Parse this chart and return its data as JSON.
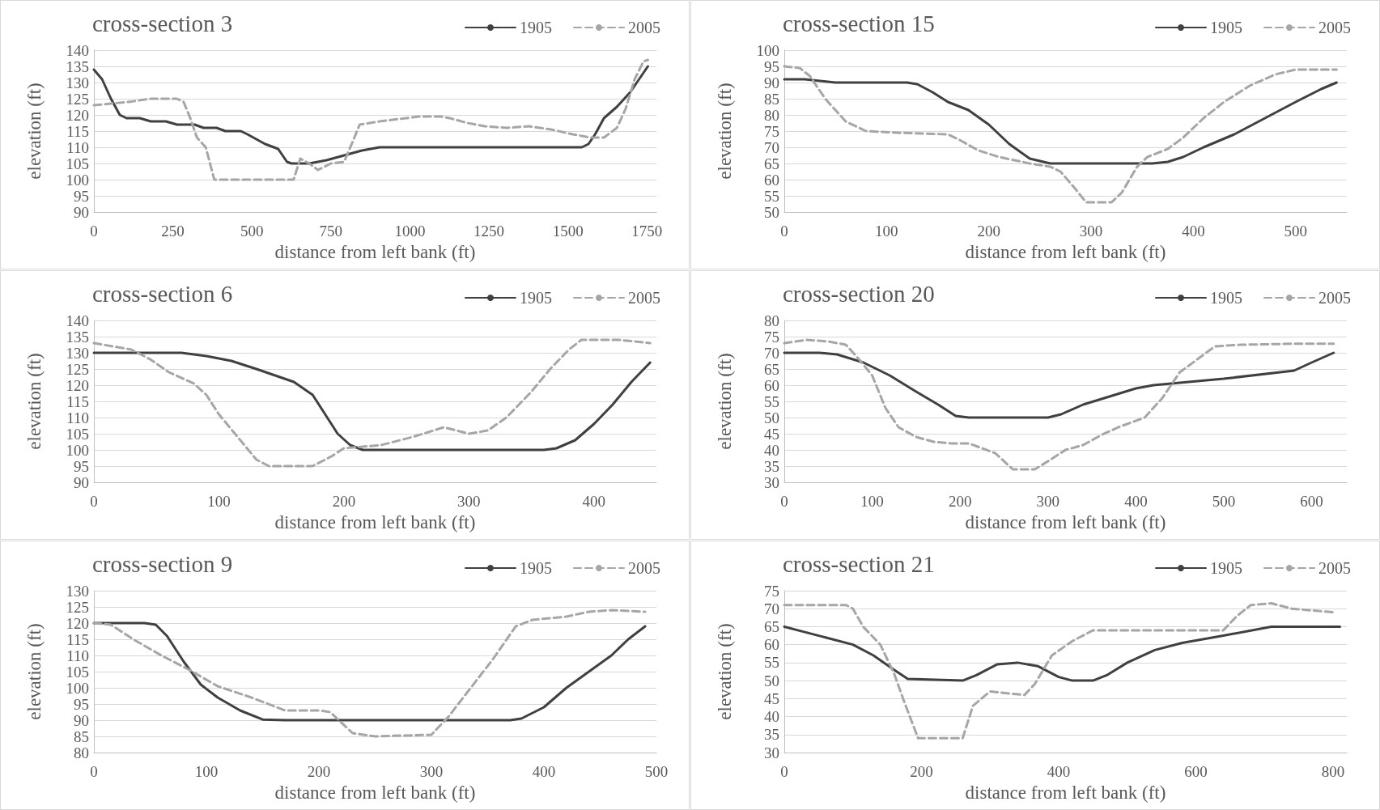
{
  "chart_data": [
    {
      "type": "line",
      "title": "cross-section 3",
      "xlabel": "distance from left bank (ft)",
      "ylabel": "elevation (ft)",
      "xlim": [
        0,
        1780
      ],
      "xticks": [
        0,
        250,
        500,
        750,
        1000,
        1250,
        1500,
        1750
      ],
      "ylim": [
        90,
        140
      ],
      "yticks": [
        90,
        95,
        100,
        105,
        110,
        115,
        120,
        125,
        130,
        135,
        140
      ],
      "grid": "y",
      "legend": "top right",
      "marker": "none",
      "series": [
        {
          "name": "1905",
          "color": "#404040",
          "line_style": "solid",
          "x": [
            0,
            26,
            54,
            82,
            103,
            145,
            180,
            228,
            263,
            319,
            347,
            388,
            416,
            465,
            486,
            542,
            583,
            611,
            625,
            681,
            736,
            792,
            848,
            904,
            1098,
            1544,
            1565,
            1586,
            1614,
            1655,
            1697,
            1725,
            1753
          ],
          "values": [
            134,
            131,
            125,
            120,
            119,
            119,
            118,
            118,
            117,
            117,
            116,
            116,
            115,
            115,
            114,
            111,
            109.5,
            105.5,
            105,
            105,
            106,
            107.5,
            109,
            110,
            110,
            110,
            111,
            114,
            119,
            122.5,
            127,
            131,
            135
          ]
        },
        {
          "name": "2005",
          "color": "#a6a6a6",
          "line_style": "dashed",
          "x": [
            0,
            54,
            110,
            180,
            263,
            284,
            305,
            326,
            354,
            381,
            402,
            632,
            653,
            681,
            709,
            750,
            792,
            820,
            841,
            904,
            1029,
            1098,
            1126,
            1182,
            1237,
            1307,
            1376,
            1446,
            1516,
            1572,
            1614,
            1655,
            1683,
            1711,
            1739,
            1753
          ],
          "values": [
            123,
            123.5,
            124,
            125,
            125,
            124,
            119,
            113,
            110,
            100,
            100,
            100,
            106.5,
            105,
            103,
            105,
            105.5,
            112,
            117,
            118,
            119.5,
            119.5,
            119,
            117.5,
            116.5,
            116,
            116.5,
            115.5,
            114,
            113,
            113,
            116,
            122,
            131,
            136.5,
            137
          ]
        }
      ]
    },
    {
      "type": "line",
      "title": "cross-section 15",
      "xlabel": "distance from left bank (ft)",
      "ylabel": "elevation (ft)",
      "xlim": [
        0,
        550
      ],
      "xticks": [
        0,
        100,
        200,
        300,
        400,
        500
      ],
      "ylim": [
        50,
        100
      ],
      "yticks": [
        50,
        55,
        60,
        65,
        70,
        75,
        80,
        85,
        90,
        95,
        100
      ],
      "grid": "y",
      "legend": "top right",
      "marker": "none",
      "series": [
        {
          "name": "1905",
          "color": "#404040",
          "line_style": "solid",
          "x": [
            0,
            20,
            50,
            120,
            130,
            145,
            160,
            180,
            200,
            220,
            240,
            260,
            300,
            360,
            375,
            390,
            410,
            440,
            470,
            500,
            525,
            540
          ],
          "values": [
            91,
            91,
            90,
            90,
            89.5,
            87,
            84,
            81.5,
            77,
            71,
            66.5,
            65,
            65,
            65,
            65.5,
            67,
            70,
            74,
            79,
            84,
            88,
            90
          ]
        },
        {
          "name": "2005",
          "color": "#a6a6a6",
          "line_style": "dashed",
          "x": [
            0,
            15,
            25,
            40,
            60,
            80,
            110,
            160,
            170,
            190,
            210,
            240,
            260,
            270,
            285,
            295,
            320,
            330,
            345,
            355,
            375,
            390,
            410,
            430,
            455,
            480,
            500,
            540
          ],
          "values": [
            95,
            94.5,
            92,
            85,
            78,
            75,
            74.5,
            74,
            72.5,
            69,
            67,
            65,
            64,
            62.5,
            57,
            53,
            53,
            56,
            64,
            67,
            69.5,
            73,
            79,
            84,
            89,
            92.5,
            94,
            94
          ]
        }
      ]
    },
    {
      "type": "line",
      "title": "cross-section 6",
      "xlabel": "distance from left bank (ft)",
      "ylabel": "elevation (ft)",
      "xlim": [
        0,
        450
      ],
      "xticks": [
        0,
        100,
        200,
        300,
        400
      ],
      "ylim": [
        90,
        140
      ],
      "yticks": [
        90,
        95,
        100,
        105,
        110,
        115,
        120,
        125,
        130,
        135,
        140
      ],
      "grid": "y",
      "legend": "top right",
      "marker": "none",
      "series": [
        {
          "name": "1905",
          "color": "#404040",
          "line_style": "solid",
          "x": [
            0,
            70,
            90,
            110,
            130,
            160,
            175,
            185,
            195,
            205,
            215,
            360,
            370,
            385,
            400,
            415,
            430,
            445
          ],
          "values": [
            130,
            130,
            129,
            127.5,
            125,
            121,
            117,
            111,
            105,
            101.5,
            100,
            100,
            100.5,
            103,
            108,
            114,
            121,
            127
          ]
        },
        {
          "name": "2005",
          "color": "#a6a6a6",
          "line_style": "dashed",
          "x": [
            0,
            30,
            45,
            60,
            80,
            90,
            100,
            115,
            130,
            140,
            175,
            190,
            200,
            230,
            255,
            280,
            300,
            315,
            330,
            350,
            365,
            380,
            390,
            420,
            445
          ],
          "values": [
            133,
            131,
            128,
            124,
            120.5,
            117,
            111,
            104,
            97,
            95,
            95,
            98,
            100.5,
            101.5,
            104,
            107,
            105,
            106,
            110,
            118,
            125,
            131,
            134,
            134,
            133
          ]
        }
      ]
    },
    {
      "type": "line",
      "title": "cross-section 20",
      "xlabel": "distance from left bank (ft)",
      "ylabel": "elevation (ft)",
      "xlim": [
        0,
        640
      ],
      "xticks": [
        0,
        100,
        200,
        300,
        400,
        500,
        600
      ],
      "ylim": [
        30,
        80
      ],
      "yticks": [
        30,
        35,
        40,
        45,
        50,
        55,
        60,
        65,
        70,
        75,
        80
      ],
      "grid": "y",
      "legend": "top right",
      "marker": "none",
      "series": [
        {
          "name": "1905",
          "color": "#404040",
          "line_style": "solid",
          "x": [
            0,
            40,
            60,
            90,
            120,
            150,
            175,
            195,
            210,
            300,
            315,
            340,
            370,
            400,
            420,
            440,
            500,
            580,
            600,
            625
          ],
          "values": [
            70,
            70,
            69.5,
            67,
            63,
            58,
            54,
            50.5,
            50,
            50,
            51,
            54,
            56.5,
            59,
            60,
            60.5,
            62,
            64.5,
            67,
            70
          ]
        },
        {
          "name": "2005",
          "color": "#a6a6a6",
          "line_style": "dashed",
          "x": [
            0,
            25,
            50,
            70,
            85,
            100,
            115,
            130,
            150,
            170,
            190,
            210,
            240,
            260,
            285,
            300,
            320,
            340,
            360,
            380,
            410,
            430,
            450,
            470,
            490,
            520,
            580,
            625
          ],
          "values": [
            73,
            74,
            73.5,
            72.5,
            68,
            63,
            53,
            47,
            44,
            42.5,
            42,
            42,
            39,
            34,
            34,
            36.5,
            40,
            41.5,
            44.5,
            47,
            50,
            56,
            64,
            68,
            72,
            72.5,
            72.8,
            72.8
          ]
        }
      ]
    },
    {
      "type": "line",
      "title": "cross-section 9",
      "xlabel": "distance from left bank (ft)",
      "ylabel": "elevation (ft)",
      "xlim": [
        0,
        500
      ],
      "xticks": [
        0,
        100,
        200,
        300,
        400,
        500
      ],
      "ylim": [
        80,
        130
      ],
      "yticks": [
        80,
        85,
        90,
        95,
        100,
        105,
        110,
        115,
        120,
        125,
        130
      ],
      "grid": "y",
      "legend": "top right",
      "marker": "none",
      "series": [
        {
          "name": "1905",
          "color": "#404040",
          "line_style": "solid",
          "x": [
            0,
            45,
            55,
            65,
            80,
            95,
            110,
            130,
            150,
            170,
            370,
            380,
            400,
            420,
            440,
            460,
            475,
            490
          ],
          "values": [
            120,
            120,
            119.5,
            116,
            108,
            101,
            97,
            93,
            90.2,
            90,
            90,
            90.5,
            94,
            100,
            105,
            110,
            115,
            119
          ]
        },
        {
          "name": "2005",
          "color": "#a6a6a6",
          "line_style": "dashed",
          "x": [
            0,
            15,
            35,
            60,
            85,
            110,
            140,
            170,
            200,
            210,
            230,
            250,
            300,
            315,
            335,
            355,
            375,
            390,
            420,
            440,
            460,
            490
          ],
          "values": [
            120,
            119.5,
            115,
            110,
            105.5,
            100.5,
            97,
            93,
            93,
            92.5,
            86,
            85,
            85.5,
            91,
            100,
            109,
            119,
            121,
            122,
            123.5,
            124,
            123.5
          ]
        }
      ]
    },
    {
      "type": "line",
      "title": "cross-section 21",
      "xlabel": "distance from left bank (ft)",
      "ylabel": "elevation (ft)",
      "xlim": [
        0,
        820
      ],
      "xticks": [
        0,
        200,
        400,
        600,
        800
      ],
      "ylim": [
        30,
        75
      ],
      "yticks": [
        30,
        35,
        40,
        45,
        50,
        55,
        60,
        65,
        70,
        75
      ],
      "grid": "y",
      "legend": "top right",
      "marker": "none",
      "series": [
        {
          "name": "1905",
          "color": "#404040",
          "line_style": "solid",
          "x": [
            0,
            30,
            60,
            100,
            130,
            160,
            180,
            260,
            280,
            310,
            340,
            370,
            400,
            420,
            450,
            470,
            500,
            540,
            580,
            640,
            710,
            810
          ],
          "values": [
            65,
            63.5,
            62,
            60,
            57,
            53,
            50.5,
            50,
            51.5,
            54.5,
            55,
            54,
            51,
            50,
            50,
            51.5,
            55,
            58.5,
            60.5,
            62.5,
            65,
            65
          ]
        },
        {
          "name": "2005",
          "color": "#a6a6a6",
          "line_style": "dashed",
          "x": [
            0,
            90,
            100,
            115,
            140,
            160,
            175,
            195,
            260,
            275,
            300,
            350,
            365,
            390,
            420,
            450,
            640,
            660,
            680,
            710,
            740,
            800
          ],
          "values": [
            71,
            71,
            70,
            65,
            60,
            52,
            44,
            34,
            34,
            43,
            47,
            46,
            49,
            57,
            61,
            64,
            64,
            68,
            71,
            71.5,
            70,
            69
          ]
        }
      ]
    }
  ]
}
